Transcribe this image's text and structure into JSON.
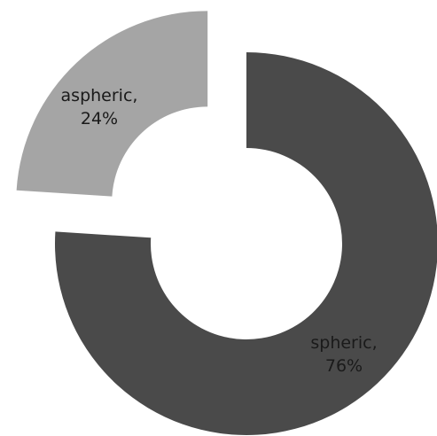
{
  "chart_data": {
    "type": "pie",
    "donut": true,
    "exploded": true,
    "categories": [
      "spheric",
      "aspheric"
    ],
    "values": [
      76,
      24
    ],
    "labels": [
      {
        "line1": "spheric,",
        "line2": "76%"
      },
      {
        "line1": "aspheric,",
        "line2": "24%"
      }
    ],
    "colors": {
      "spheric": "#4a4a4a",
      "aspheric": "#a5a5a5",
      "background": "#ffffff",
      "label_text": "#1a1a1a"
    },
    "legend": "none"
  }
}
